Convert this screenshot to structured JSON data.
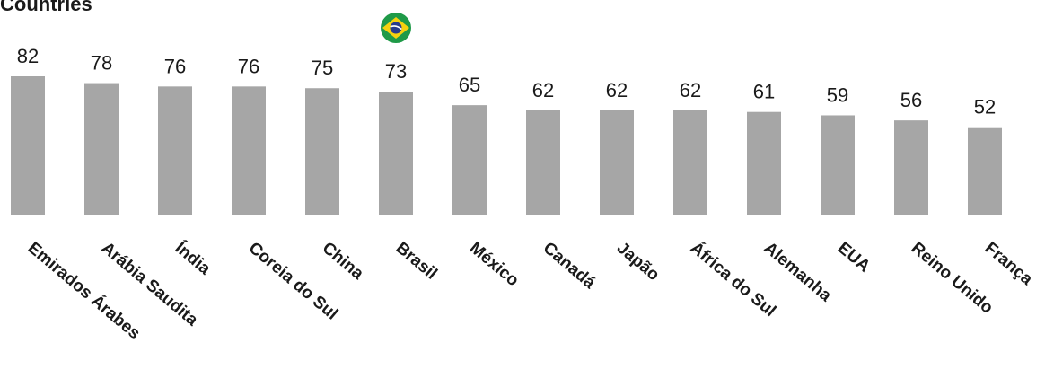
{
  "title": "Countries",
  "highlight_icon": "brazil-flag-icon",
  "colors": {
    "bar": "#a6a6a6",
    "text": "#1a1a1a",
    "flag_green": "#1f9a48",
    "flag_yellow": "#f5d10f",
    "flag_blue": "#263a8c"
  },
  "chart_data": {
    "type": "bar",
    "title": "Countries",
    "categories": [
      "Emirados Árabes",
      "Arábia Saudita",
      "Índia",
      "Coreia do Sul",
      "China",
      "Brasil",
      "México",
      "Canadá",
      "Japão",
      "África do Sul",
      "Alemanha",
      "EUA",
      "Reino Unido",
      "França"
    ],
    "values": [
      82,
      78,
      76,
      76,
      75,
      73,
      65,
      62,
      62,
      62,
      61,
      59,
      56,
      52
    ],
    "highlight": "Brasil",
    "xlabel": "",
    "ylabel": "",
    "grid": false,
    "legend": "none"
  }
}
